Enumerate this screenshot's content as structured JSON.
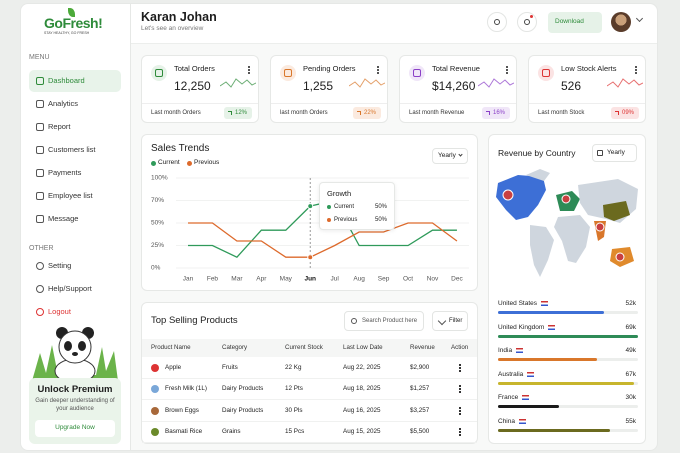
{
  "sidebar": {
    "logo": "GoFresh!",
    "tagline": "STAY HEALTHY, GO FRESH",
    "menu_label": "MENU",
    "menu": [
      "Dashboard",
      "Analytics",
      "Report",
      "Customers list",
      "Payments",
      "Employee list",
      "Message"
    ],
    "other_label": "OTHER",
    "other": [
      "Setting",
      "Help/Support",
      "Logout"
    ],
    "promo": {
      "title": "Unlock Premium",
      "text": "Gain deeper understanding of your audience",
      "button": "Upgrade Now"
    }
  },
  "header": {
    "name": "Karan Johan",
    "subtitle": "Let's see an overview",
    "download": "Download"
  },
  "stats": [
    {
      "title": "Total Orders",
      "value": "12,250",
      "note": "Last month Orders",
      "change": "12%"
    },
    {
      "title": "Pending Orders",
      "value": "1,255",
      "note": "last month Orders",
      "change": "22%"
    },
    {
      "title": "Total Revenue",
      "value": "$14,260",
      "note": "Last month Revenue",
      "change": "16%"
    },
    {
      "title": "Low Stock Alerts",
      "value": "526",
      "note": "Last month Stock",
      "change": "09%"
    }
  ],
  "sales_trends": {
    "type": "line",
    "title": "Sales Trends",
    "period": "Yearly",
    "categories": [
      "Jan",
      "Feb",
      "Mar",
      "Apr",
      "May",
      "Jun",
      "Jul",
      "Aug",
      "Sep",
      "Oct",
      "Nov",
      "Dec"
    ],
    "series": [
      {
        "name": "Current",
        "color": "#2f9a5a",
        "values": [
          25,
          25,
          12,
          42,
          42,
          65,
          70,
          25,
          25,
          25,
          42,
          42
        ]
      },
      {
        "name": "Previous",
        "color": "#dd6a2c",
        "values": [
          50,
          50,
          30,
          30,
          12,
          12,
          25,
          40,
          40,
          50,
          50,
          30
        ]
      }
    ],
    "ylim": [
      0,
      100
    ],
    "yticks": [
      {
        "value": 0,
        "label": "0%"
      },
      {
        "value": 25,
        "label": "25%"
      },
      {
        "value": 50,
        "label": "50%"
      },
      {
        "value": 70,
        "label": "70%"
      },
      {
        "value": 100,
        "label": "100%"
      }
    ],
    "tooltip": {
      "title": "Growth",
      "values": [
        "50%",
        "50%"
      ]
    }
  },
  "revenue_by_country": {
    "type": "bar",
    "title": "Revenue by Country",
    "period": "Yearly",
    "categories": [
      "United States",
      "United Kingdom",
      "India",
      "Australia",
      "France",
      "China"
    ],
    "values": [
      52,
      69,
      49,
      67,
      30,
      55
    ],
    "value_labels": [
      "52k",
      "69k",
      "49k",
      "67k",
      "30k",
      "55k"
    ],
    "colors": [
      "#3d6fd6",
      "#2e8b57",
      "#d9772b",
      "#c7b52d",
      "#1a1a1a",
      "#6b6a1f"
    ]
  },
  "top_products": {
    "title": "Top Selling Products",
    "search": "Search Product here",
    "filter": "Filter",
    "columns": [
      "Product Name",
      "Category",
      "Current Stock",
      "Last Low Date",
      "Revenue",
      "Action"
    ],
    "rows": [
      [
        "Apple",
        "Fruits",
        "22 Kg",
        "Aug 22, 2025",
        "$2,900"
      ],
      [
        "Fresh Milk (1L)",
        "Dairy Products",
        "12 Pts",
        "Aug 18, 2025",
        "$1,257"
      ],
      [
        "Brown Eggs",
        "Dairy Products",
        "30 Pls",
        "Aug 16, 2025",
        "$3,257"
      ],
      [
        "Basmati Rice",
        "Grains",
        "15 Pcs",
        "Aug 15, 2025",
        "$5,500"
      ]
    ]
  }
}
